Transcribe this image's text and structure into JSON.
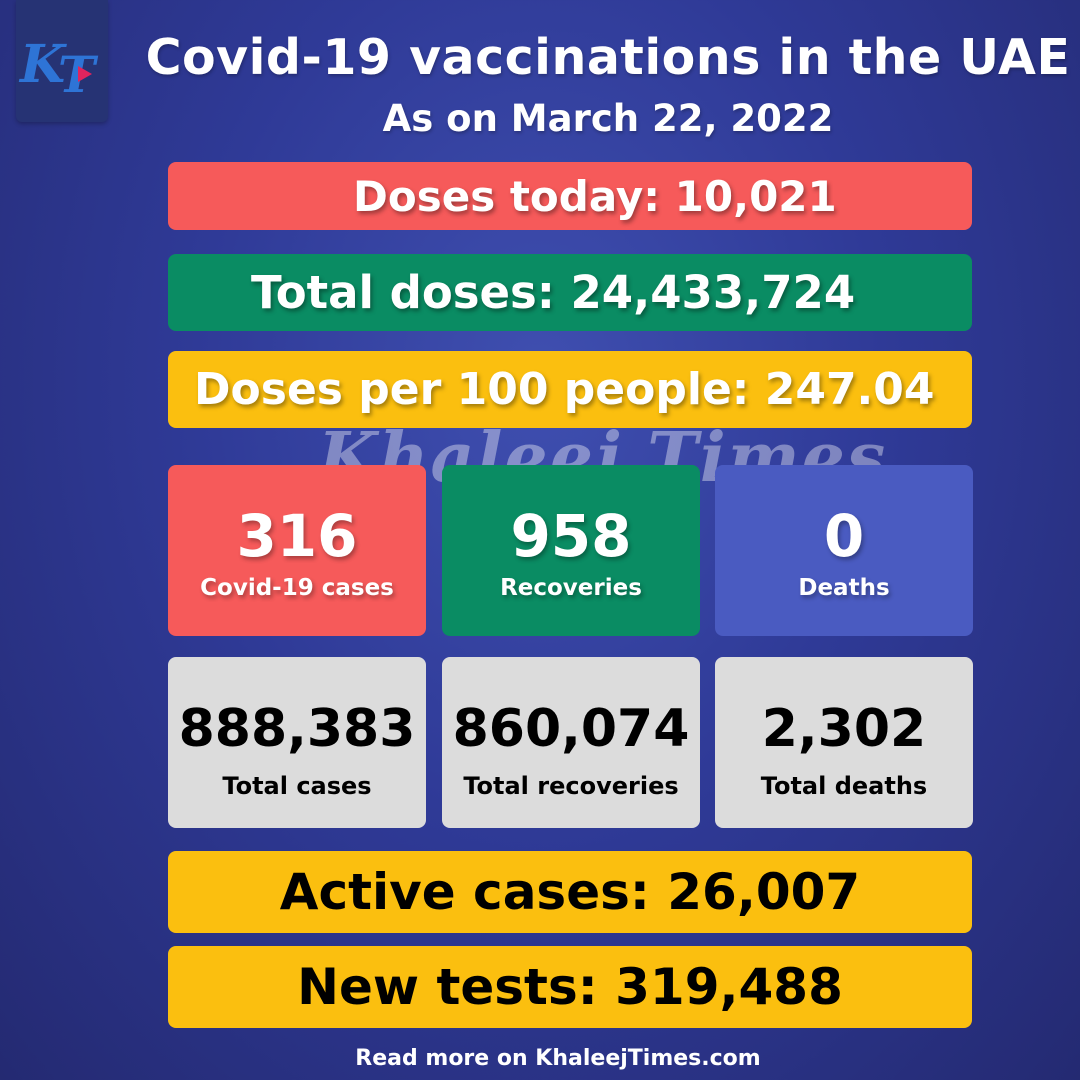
{
  "logo": {
    "text": "KT",
    "icon": "khaleej-times-logo"
  },
  "header": {
    "title": "Covid-19 vaccinations in the UAE",
    "subtitle": "As on March 22, 2022"
  },
  "vaccination": {
    "doses_today": "Doses today: 10,021",
    "total_doses": "Total doses: 24,433,724",
    "doses_per_100": "Doses per 100 people: 247.04"
  },
  "watermark": "Khaleej Times",
  "daily_stats": [
    {
      "value": "316",
      "label": "Covid-19 cases"
    },
    {
      "value": "958",
      "label": "Recoveries"
    },
    {
      "value": "0",
      "label": "Deaths"
    }
  ],
  "totals": [
    {
      "value": "888,383",
      "label": "Total cases"
    },
    {
      "value": "860,074",
      "label": "Total recoveries"
    },
    {
      "value": "2,302",
      "label": "Total deaths"
    }
  ],
  "active_cases": "Active cases: 26,007",
  "new_tests": "New tests: 319,488",
  "footer": "Read more on KhaleejTimes.com",
  "colors": {
    "background": "#2f3a97",
    "red": "#f65a5a",
    "green": "#0a8c63",
    "yellow": "#fbbf0f",
    "blue": "#4a5bc1",
    "grey": "#dcdcdc"
  }
}
